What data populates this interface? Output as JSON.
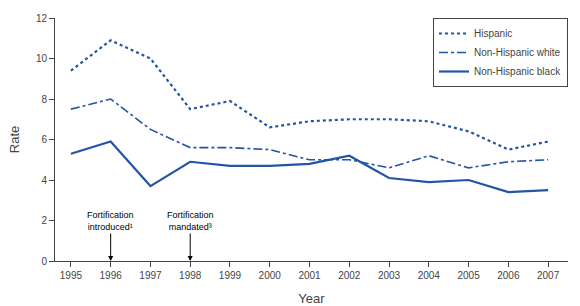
{
  "chart_data": {
    "type": "line",
    "x": [
      1995,
      1996,
      1997,
      1998,
      1999,
      2000,
      2001,
      2002,
      2003,
      2004,
      2005,
      2006,
      2007
    ],
    "series": [
      {
        "name": "Hispanic",
        "color": "#2255a4",
        "line_style": "dotted",
        "values": [
          9.4,
          10.9,
          10.0,
          7.5,
          7.9,
          6.6,
          6.9,
          7.0,
          7.0,
          6.9,
          6.4,
          5.5,
          5.9
        ]
      },
      {
        "name": "Non-Hispanic white",
        "color": "#2255a4",
        "line_style": "dashdot",
        "values": [
          7.5,
          8.0,
          6.5,
          5.6,
          5.6,
          5.5,
          5.0,
          5.0,
          4.6,
          5.2,
          4.6,
          4.9,
          5.0
        ]
      },
      {
        "name": "Non-Hispanic black",
        "color": "#2255a4",
        "line_style": "solid",
        "values": [
          5.3,
          5.9,
          3.7,
          4.9,
          4.7,
          4.7,
          4.8,
          5.2,
          4.1,
          3.9,
          4.0,
          3.4,
          3.5
        ]
      }
    ],
    "xlabel": "Year",
    "ylabel": "Rate",
    "xlim": [
      1994.6,
      2007.5
    ],
    "xticks": [
      1995,
      1996,
      1997,
      1998,
      1999,
      2000,
      2001,
      2002,
      2003,
      2004,
      2005,
      2006,
      2007
    ],
    "ylim": [
      0,
      12
    ],
    "yticks": [
      0,
      2,
      4,
      6,
      8,
      10,
      12
    ],
    "annotations": [
      {
        "text": "Fortification\nintroduced¹",
        "x": 1996
      },
      {
        "text": "Fortification\nmandated³",
        "x": 1998
      }
    ],
    "grid": false,
    "legend": "upper right"
  }
}
